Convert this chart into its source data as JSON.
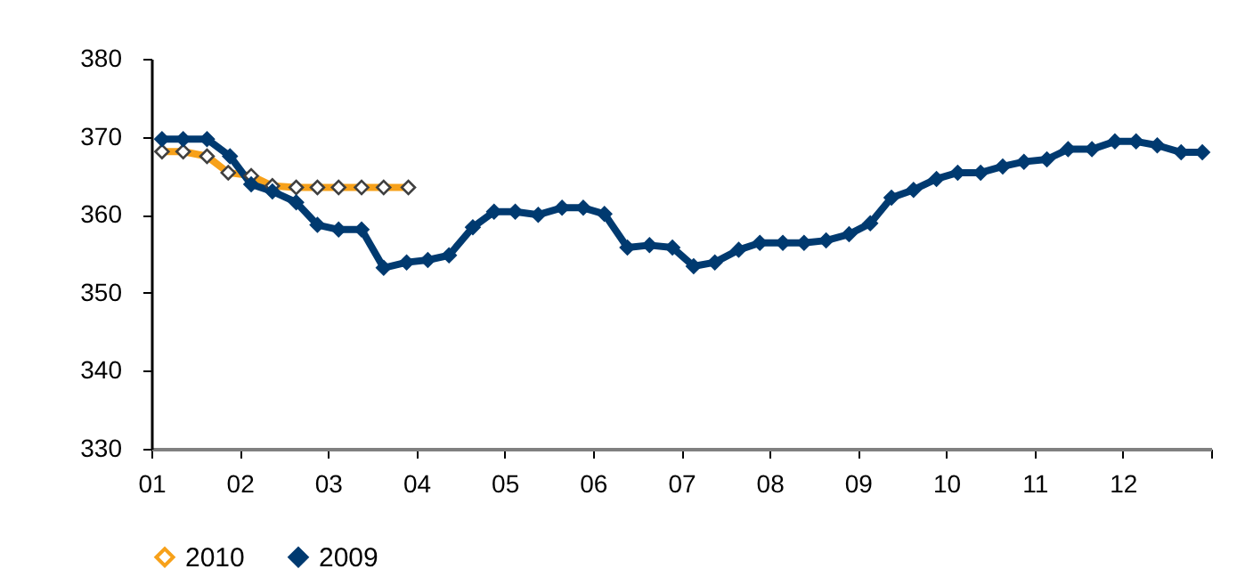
{
  "chart_data": {
    "type": "line",
    "xlim": [
      1,
      13
    ],
    "xticks": [
      {
        "value": 1,
        "label": "01"
      },
      {
        "value": 2,
        "label": "02"
      },
      {
        "value": 3,
        "label": "03"
      },
      {
        "value": 4,
        "label": "04"
      },
      {
        "value": 5,
        "label": "05"
      },
      {
        "value": 6,
        "label": "06"
      },
      {
        "value": 7,
        "label": "07"
      },
      {
        "value": 8,
        "label": "08"
      },
      {
        "value": 9,
        "label": "09"
      },
      {
        "value": 10,
        "label": "10"
      },
      {
        "value": 11,
        "label": "11"
      },
      {
        "value": 12,
        "label": "12"
      },
      {
        "value": 13,
        "label": null
      }
    ],
    "ylim": [
      330,
      380
    ],
    "yticks": [
      330,
      340,
      350,
      360,
      370,
      380
    ],
    "grid": false,
    "legend": "bottom",
    "marker": "diamond",
    "line_style": "solid",
    "series": [
      {
        "name": "2010",
        "color": "#f7a11a",
        "x": [
          1.12,
          1.36,
          1.63,
          1.87,
          2.13,
          2.37,
          2.64,
          2.88,
          3.12,
          3.38,
          3.63,
          3.91
        ],
        "values": [
          368.1,
          368.1,
          367.5,
          365.4,
          365,
          363.7,
          363.5,
          363.5,
          363.5,
          363.5,
          363.5,
          363.5
        ]
      },
      {
        "name": "2009",
        "color": "#003a70",
        "x": [
          1.12,
          1.36,
          1.63,
          1.89,
          2.13,
          2.37,
          2.64,
          2.88,
          3.12,
          3.38,
          3.63,
          3.89,
          4.13,
          4.37,
          4.64,
          4.88,
          5.12,
          5.38,
          5.65,
          5.89,
          6.13,
          6.39,
          6.64,
          6.9,
          7.14,
          7.38,
          7.65,
          7.89,
          8.15,
          8.39,
          8.64,
          8.9,
          9.14,
          9.38,
          9.63,
          9.89,
          10.13,
          10.39,
          10.64,
          10.88,
          11.14,
          11.38,
          11.65,
          11.91,
          12.15,
          12.39,
          12.66,
          12.9
        ],
        "values": [
          369.7,
          369.7,
          369.7,
          367.5,
          363.9,
          363,
          361.6,
          358.7,
          358.1,
          358.1,
          353.2,
          353.9,
          354.2,
          354.8,
          358.4,
          360.4,
          360.4,
          360,
          360.9,
          360.9,
          360.1,
          355.8,
          356.1,
          355.8,
          353.4,
          353.9,
          355.5,
          356.4,
          356.4,
          356.4,
          356.7,
          357.5,
          358.9,
          362.2,
          363.2,
          364.6,
          365.4,
          365.4,
          366.2,
          366.8,
          367.1,
          368.4,
          368.4,
          369.4,
          369.4,
          368.9,
          368,
          368
        ]
      }
    ]
  }
}
